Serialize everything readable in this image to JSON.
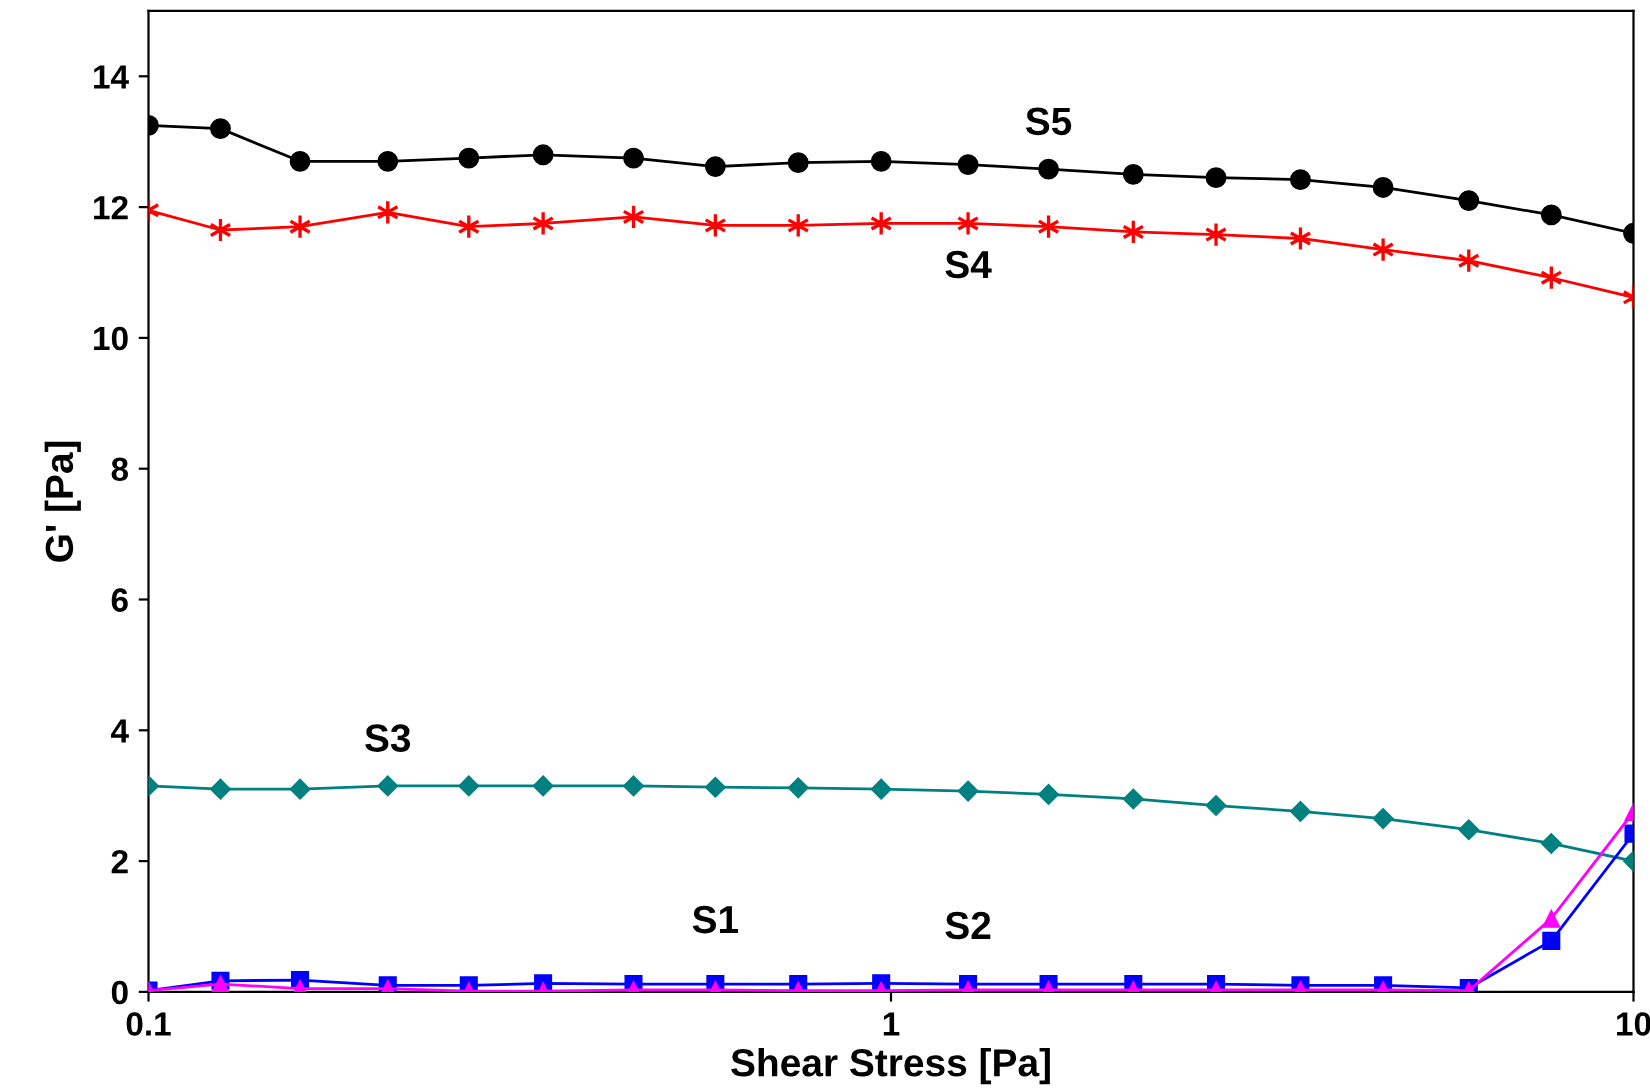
{
  "chart_data": {
    "type": "line",
    "xlabel": "Shear Stress [Pa]",
    "ylabel": "G' [Pa]",
    "log": "x",
    "xlim": [
      0.1,
      10
    ],
    "xticks": [
      0.1,
      1,
      10
    ],
    "ylim": [
      0,
      15
    ],
    "yticks": [
      0,
      2,
      4,
      6,
      8,
      10,
      12,
      14
    ],
    "grid": false,
    "legend": false,
    "x": [
      0.1,
      0.125,
      0.16,
      0.21,
      0.27,
      0.34,
      0.45,
      0.58,
      0.75,
      0.97,
      1.27,
      1.63,
      2.12,
      2.74,
      3.56,
      4.6,
      6.0,
      7.75,
      10
    ],
    "series": [
      {
        "name": "S5",
        "color": "#000000",
        "marker": "circle",
        "values": [
          13.25,
          13.2,
          12.7,
          12.7,
          12.75,
          12.8,
          12.75,
          12.62,
          12.68,
          12.7,
          12.65,
          12.58,
          12.5,
          12.45,
          12.42,
          12.3,
          12.1,
          11.88,
          11.6
        ]
      },
      {
        "name": "S4",
        "color": "#ff0000",
        "marker": "cross",
        "values": [
          11.95,
          11.65,
          11.7,
          11.92,
          11.7,
          11.75,
          11.85,
          11.72,
          11.72,
          11.75,
          11.75,
          11.7,
          11.62,
          11.58,
          11.52,
          11.35,
          11.18,
          10.92,
          10.62
        ]
      },
      {
        "name": "S3",
        "color": "#008080",
        "marker": "diamond",
        "values": [
          3.15,
          3.1,
          3.1,
          3.15,
          3.15,
          3.15,
          3.15,
          3.13,
          3.12,
          3.1,
          3.07,
          3.02,
          2.95,
          2.85,
          2.76,
          2.65,
          2.48,
          2.27,
          2.0
        ]
      },
      {
        "name": "S1",
        "color": "#0000ff",
        "marker": "square",
        "values": [
          0.02,
          0.17,
          0.18,
          0.1,
          0.1,
          0.13,
          0.12,
          0.12,
          0.12,
          0.13,
          0.12,
          0.12,
          0.12,
          0.12,
          0.1,
          0.1,
          0.06,
          0.78,
          2.42
        ]
      },
      {
        "name": "S2",
        "color": "#ff00ff",
        "marker": "triangle",
        "values": [
          0.02,
          0.12,
          0.05,
          0.05,
          0.01,
          0.01,
          0.03,
          0.03,
          0.02,
          0.02,
          0.03,
          0.03,
          0.03,
          0.03,
          0.03,
          0.03,
          0.02,
          1.12,
          2.75
        ]
      }
    ]
  }
}
